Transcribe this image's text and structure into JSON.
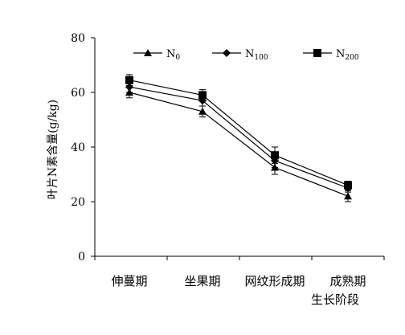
{
  "chart_data": {
    "type": "line",
    "title": "",
    "ylabel": "叶片N素含量(g/kg)",
    "xlabel": "生长阶段",
    "ylim": [
      0,
      80
    ],
    "yticks": [
      0,
      20,
      40,
      60,
      80
    ],
    "categories": [
      "伸蔓期",
      "坐果期",
      "网纹形成期",
      "成熟期"
    ],
    "legend_position": "top",
    "series": [
      {
        "name": "N0",
        "name_main": "N",
        "name_sub": "0",
        "marker": "triangle",
        "values": [
          60,
          53,
          32.5,
          22
        ],
        "errors": [
          2,
          2,
          2.5,
          2
        ]
      },
      {
        "name": "N100",
        "name_main": "N",
        "name_sub": "100",
        "marker": "diamond",
        "values": [
          62,
          57,
          35,
          25
        ],
        "errors": [
          2,
          2,
          2.5,
          1.5
        ]
      },
      {
        "name": "N200",
        "name_main": "N",
        "name_sub": "200",
        "marker": "square",
        "values": [
          64.5,
          59,
          37,
          26
        ],
        "errors": [
          2,
          2,
          3,
          1.5
        ]
      }
    ],
    "colors": {
      "line": "#000000",
      "marker": "#000000"
    }
  }
}
